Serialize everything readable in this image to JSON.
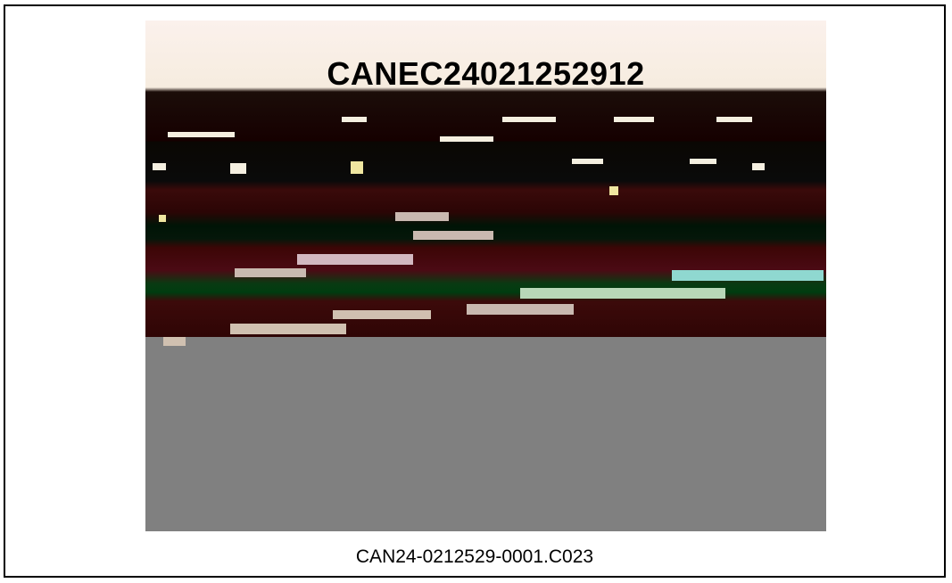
{
  "document": {
    "image_overlay_id": "CANEC24021252912",
    "caption": "CAN24-0212529-0001.C023"
  },
  "colors": {
    "border": "#000000",
    "background": "#ffffff",
    "photo_gray": "#808080"
  }
}
